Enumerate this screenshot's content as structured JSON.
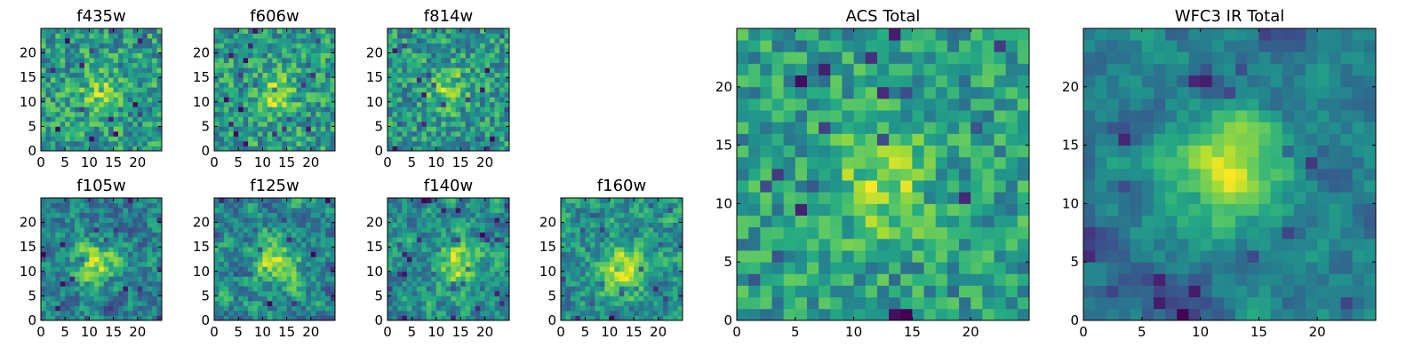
{
  "figure": {
    "description_free": true
  },
  "chart_data": [
    {
      "type": "heatmap",
      "title": "f435w",
      "xlim": [
        0,
        25
      ],
      "ylim": [
        0,
        25
      ],
      "xticks": [
        0,
        5,
        10,
        15,
        20
      ],
      "xtick_labels": [
        "0",
        "5",
        "10",
        "15",
        "20"
      ],
      "yticks": [
        0,
        5,
        10,
        15,
        20
      ],
      "ytick_labels": [
        "0",
        "5",
        "10",
        "15",
        "20"
      ],
      "colormap": "viridis",
      "grid_size": 25,
      "peak": [
        12,
        11
      ],
      "noise": 0.55,
      "smooth": 0,
      "seed": 11
    },
    {
      "type": "heatmap",
      "title": "f606w",
      "xlim": [
        0,
        25
      ],
      "ylim": [
        0,
        25
      ],
      "xticks": [
        0,
        5,
        10,
        15,
        20
      ],
      "xtick_labels": [
        "0",
        "5",
        "10",
        "15",
        "20"
      ],
      "yticks": [
        0,
        5,
        10,
        15,
        20
      ],
      "ytick_labels": [
        "0",
        "5",
        "10",
        "15",
        "20"
      ],
      "colormap": "viridis",
      "grid_size": 25,
      "peak": [
        12,
        11
      ],
      "noise": 0.5,
      "smooth": 0,
      "seed": 23
    },
    {
      "type": "heatmap",
      "title": "f814w",
      "xlim": [
        0,
        25
      ],
      "ylim": [
        0,
        25
      ],
      "xticks": [
        0,
        5,
        10,
        15,
        20
      ],
      "xtick_labels": [
        "0",
        "5",
        "10",
        "15",
        "20"
      ],
      "yticks": [
        0,
        5,
        10,
        15,
        20
      ],
      "ytick_labels": [
        "0",
        "5",
        "10",
        "15",
        "20"
      ],
      "colormap": "viridis",
      "grid_size": 25,
      "peak": [
        12,
        12
      ],
      "noise": 0.5,
      "smooth": 0,
      "seed": 37
    },
    {
      "type": "heatmap",
      "title": "f105w",
      "xlim": [
        0,
        25
      ],
      "ylim": [
        0,
        25
      ],
      "xticks": [
        0,
        5,
        10,
        15,
        20
      ],
      "xtick_labels": [
        "0",
        "5",
        "10",
        "15",
        "20"
      ],
      "yticks": [
        0,
        5,
        10,
        15,
        20
      ],
      "ytick_labels": [
        "0",
        "5",
        "10",
        "15",
        "20"
      ],
      "colormap": "viridis",
      "grid_size": 25,
      "peak": [
        11,
        11
      ],
      "noise": 0.45,
      "smooth": 1,
      "seed": 41
    },
    {
      "type": "heatmap",
      "title": "f125w",
      "xlim": [
        0,
        25
      ],
      "ylim": [
        0,
        25
      ],
      "xticks": [
        0,
        5,
        10,
        15,
        20
      ],
      "xtick_labels": [
        "0",
        "5",
        "10",
        "15",
        "20"
      ],
      "yticks": [
        0,
        5,
        10,
        15,
        20
      ],
      "ytick_labels": [
        "0",
        "5",
        "10",
        "15",
        "20"
      ],
      "colormap": "viridis",
      "grid_size": 25,
      "peak": [
        13,
        11
      ],
      "noise": 0.45,
      "smooth": 1,
      "seed": 53
    },
    {
      "type": "heatmap",
      "title": "f140w",
      "xlim": [
        0,
        25
      ],
      "ylim": [
        0,
        25
      ],
      "xticks": [
        0,
        5,
        10,
        15,
        20
      ],
      "xtick_labels": [
        "0",
        "5",
        "10",
        "15",
        "20"
      ],
      "yticks": [
        0,
        5,
        10,
        15,
        20
      ],
      "ytick_labels": [
        "0",
        "5",
        "10",
        "15",
        "20"
      ],
      "colormap": "viridis",
      "grid_size": 25,
      "peak": [
        14,
        11
      ],
      "noise": 0.45,
      "smooth": 1,
      "seed": 67
    },
    {
      "type": "heatmap",
      "title": "f160w",
      "xlim": [
        0,
        25
      ],
      "ylim": [
        0,
        25
      ],
      "xticks": [
        0,
        5,
        10,
        15,
        20
      ],
      "xtick_labels": [
        "0",
        "5",
        "10",
        "15",
        "20"
      ],
      "yticks": [
        0,
        5,
        10,
        15,
        20
      ],
      "ytick_labels": [
        "0",
        "5",
        "10",
        "15",
        "20"
      ],
      "colormap": "viridis",
      "grid_size": 25,
      "peak": [
        12,
        10
      ],
      "noise": 0.4,
      "smooth": 1,
      "seed": 79
    },
    {
      "type": "heatmap",
      "title": "ACS Total",
      "xlim": [
        0,
        25
      ],
      "ylim": [
        0,
        25
      ],
      "xticks": [
        0,
        5,
        10,
        15,
        20
      ],
      "xtick_labels": [
        "0",
        "5",
        "10",
        "15",
        "20"
      ],
      "yticks": [
        0,
        5,
        10,
        15,
        20
      ],
      "ytick_labels": [
        "0",
        "5",
        "10",
        "15",
        "20"
      ],
      "colormap": "viridis",
      "grid_size": 25,
      "peak": [
        12,
        11
      ],
      "noise": 0.4,
      "smooth": 0,
      "seed": 97
    },
    {
      "type": "heatmap",
      "title": "WFC3 IR Total",
      "xlim": [
        0,
        25
      ],
      "ylim": [
        0,
        25
      ],
      "xticks": [
        0,
        5,
        10,
        15,
        20
      ],
      "xtick_labels": [
        "0",
        "5",
        "10",
        "15",
        "20"
      ],
      "yticks": [
        0,
        5,
        10,
        15,
        20
      ],
      "ytick_labels": [
        "0",
        "5",
        "10",
        "15",
        "20"
      ],
      "colormap": "viridis",
      "grid_size": 25,
      "peak": [
        12,
        12
      ],
      "noise": 0.3,
      "smooth": 2,
      "seed": 113
    }
  ]
}
